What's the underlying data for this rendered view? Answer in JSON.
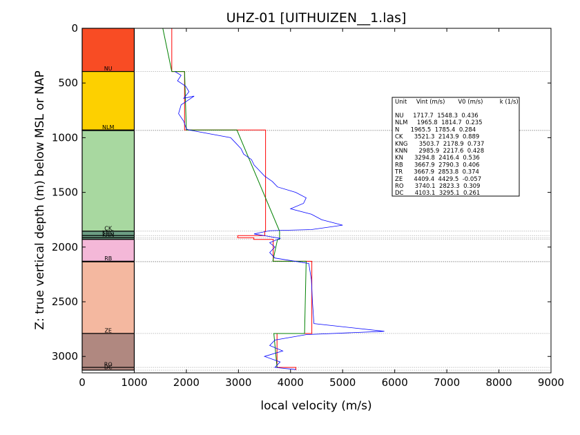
{
  "chart_data": {
    "type": "line",
    "title": "UHZ-01 [UITHUIZEN__1.las]",
    "xlabel": "local velocity (m/s)",
    "ylabel": "Z: true vertical depth (m) below MSL or NAP",
    "xlim": [
      0,
      9000
    ],
    "ylim": [
      3150,
      0
    ],
    "x_ticks": [
      "0",
      "1000",
      "2000",
      "3000",
      "4000",
      "5000",
      "6000",
      "7000",
      "8000",
      "9000"
    ],
    "y_ticks": [
      "0",
      "500",
      "1000",
      "1500",
      "2000",
      "2500",
      "3000"
    ],
    "y_tick_values": [
      0,
      500,
      1000,
      1500,
      2000,
      2500,
      3000
    ],
    "units": [
      {
        "name": "NU",
        "top": 0,
        "base": 395,
        "color": "#f84c24",
        "vint": 1717.7,
        "v0": 1548.3,
        "k": 0.436
      },
      {
        "name": "NLM",
        "top": 395,
        "base": 930,
        "color": "#fdd000",
        "vint": 1965.8,
        "v0": 1814.7,
        "k": 0.235
      },
      {
        "name": "N",
        "top": 930,
        "base": 935,
        "color": "#fdd000",
        "vint": 1965.5,
        "v0": 1785.4,
        "k": 0.284
      },
      {
        "name": "CK",
        "top": 935,
        "base": 1855,
        "color": "#a8d8a0",
        "vint": 3521.3,
        "v0": 2143.9,
        "k": 0.889
      },
      {
        "name": "KNG",
        "top": 1855,
        "base": 1895,
        "color": "#6d9e84",
        "vint": 3503.7,
        "v0": 2178.9,
        "k": 0.737
      },
      {
        "name": "KNN",
        "top": 1895,
        "base": 1915,
        "color": "#6d9e84",
        "vint": 2985.9,
        "v0": 2217.6,
        "k": 0.428
      },
      {
        "name": "KN",
        "top": 1915,
        "base": 1930,
        "color": "#6d9e84",
        "vint": 3294.8,
        "v0": 2416.4,
        "k": 0.536
      },
      {
        "name": "RB",
        "top": 1930,
        "base": 2130,
        "color": "#f4b8d8",
        "vint": 3667.9,
        "v0": 2790.3,
        "k": 0.406
      },
      {
        "name": "TR",
        "top": 2130,
        "base": 2135,
        "color": "#f4b8d8",
        "vint": 3667.9,
        "v0": 2853.8,
        "k": 0.374
      },
      {
        "name": "ZE",
        "top": 2135,
        "base": 2790,
        "color": "#f4b8a0",
        "vint": 4409.4,
        "v0": 4429.5,
        "k": -0.057
      },
      {
        "name": "RO",
        "top": 2790,
        "base": 3100,
        "color": "#b08880",
        "vint": 3740.1,
        "v0": 2823.3,
        "k": 0.309
      },
      {
        "name": "DC",
        "top": 3100,
        "base": 3125,
        "color": "#b08880",
        "vint": 4103.1,
        "v0": 3295.1,
        "k": 0.261
      }
    ],
    "unit_labels_shown": [
      "NU",
      "NLM",
      "CK",
      "KNG",
      "KNN",
      "RB",
      "ZE",
      "RO",
      "DC"
    ],
    "legend": {
      "placement": "right",
      "header": "Unit     Vint (m/s)       V0 (m/s)         k (1/s)",
      "rows": [
        "NU     1717.7  1548.3  0.436",
        "NLM     1965.8  1814.7  0.235",
        "N      1965.5  1785.4  0.284",
        "CK      3521.3  2143.9  0.889",
        "KNG      3503.7  2178.9  0.737",
        "KNN      2985.9  2217.6  0.428",
        "KN      3294.8  2416.4  0.536",
        "RB      3667.9  2790.3  0.406",
        "TR      3667.9  2853.8  0.374",
        "ZE      4409.4  4429.5  -0.057",
        "RO      3740.1  2823.3  0.309",
        "DC      4103.1  3295.1  0.261"
      ]
    },
    "series": [
      {
        "kind": "interval_velocity_steps",
        "color": "#ff0000",
        "points": [
          [
            1720,
            0
          ],
          [
            1720,
            395
          ],
          [
            1966,
            395
          ],
          [
            1966,
            930
          ],
          [
            3521,
            930
          ],
          [
            3521,
            1855
          ],
          [
            3504,
            1855
          ],
          [
            3504,
            1895
          ],
          [
            2986,
            1895
          ],
          [
            2986,
            1915
          ],
          [
            3295,
            1915
          ],
          [
            3295,
            1930
          ],
          [
            3668,
            1930
          ],
          [
            3668,
            2130
          ],
          [
            4409,
            2130
          ],
          [
            4409,
            2790
          ],
          [
            3740,
            2790
          ],
          [
            3740,
            3100
          ],
          [
            4103,
            3100
          ],
          [
            4103,
            3125
          ]
        ]
      },
      {
        "kind": "linear_fit",
        "color": "#008000",
        "points": [
          [
            1548,
            0
          ],
          [
            1720,
            395
          ],
          [
            1966,
            395
          ],
          [
            2000,
            930
          ],
          [
            2970,
            930
          ],
          [
            3790,
            1855
          ],
          [
            3790,
            1930
          ],
          [
            3750,
            1930
          ],
          [
            3660,
            2130
          ],
          [
            4300,
            2130
          ],
          [
            4270,
            2790
          ],
          [
            3680,
            2790
          ],
          [
            3740,
            3100
          ]
        ]
      },
      {
        "kind": "well_log_velocity",
        "color": "#0000ff",
        "points": [
          [
            1780,
            395
          ],
          [
            1900,
            430
          ],
          [
            1830,
            480
          ],
          [
            1990,
            530
          ],
          [
            2050,
            580
          ],
          [
            1950,
            640
          ],
          [
            2150,
            620
          ],
          [
            1900,
            700
          ],
          [
            1850,
            780
          ],
          [
            1950,
            850
          ],
          [
            2000,
            920
          ],
          [
            2050,
            930
          ],
          [
            2850,
            1000
          ],
          [
            2950,
            1050
          ],
          [
            3050,
            1100
          ],
          [
            3100,
            1150
          ],
          [
            3250,
            1200
          ],
          [
            3300,
            1250
          ],
          [
            3400,
            1300
          ],
          [
            3500,
            1350
          ],
          [
            3650,
            1400
          ],
          [
            3750,
            1450
          ],
          [
            4100,
            1500
          ],
          [
            4300,
            1550
          ],
          [
            4250,
            1600
          ],
          [
            4000,
            1650
          ],
          [
            4400,
            1700
          ],
          [
            4600,
            1750
          ],
          [
            5000,
            1800
          ],
          [
            4400,
            1840
          ],
          [
            3600,
            1850
          ],
          [
            3300,
            1880
          ],
          [
            3800,
            1920
          ],
          [
            3600,
            1960
          ],
          [
            3700,
            2000
          ],
          [
            3600,
            2050
          ],
          [
            3700,
            2100
          ],
          [
            4350,
            2150
          ],
          [
            4400,
            2300
          ],
          [
            4420,
            2500
          ],
          [
            4450,
            2700
          ],
          [
            5800,
            2770
          ],
          [
            4300,
            2800
          ],
          [
            3700,
            2850
          ],
          [
            3600,
            2900
          ],
          [
            3850,
            2950
          ],
          [
            3500,
            3000
          ],
          [
            3800,
            3050
          ],
          [
            3700,
            3100
          ],
          [
            4100,
            3120
          ]
        ]
      }
    ]
  }
}
